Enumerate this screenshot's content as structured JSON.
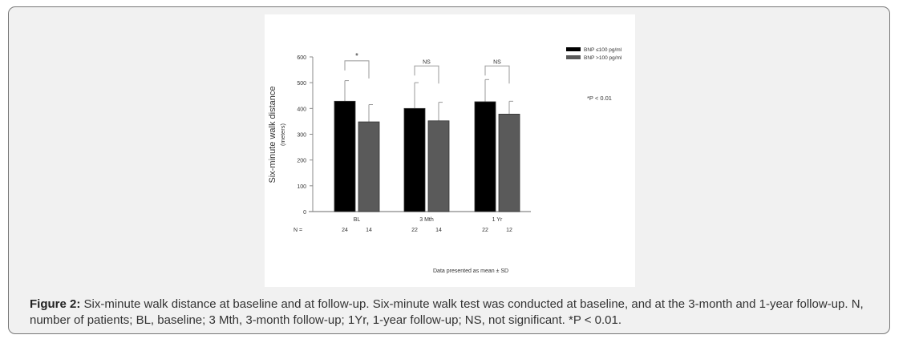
{
  "chart_data": {
    "type": "bar",
    "ylabel": "Six-minute walk distance",
    "ylabel_sub": "(meters)",
    "ylim": [
      0,
      600
    ],
    "yticks": [
      0,
      100,
      200,
      300,
      400,
      500,
      600
    ],
    "categories": [
      "BL",
      "3 Mth",
      "1 Yr"
    ],
    "series": [
      {
        "name": "BNP ≤100 pg/ml",
        "color": "#000000",
        "values": [
          428,
          400,
          426
        ],
        "error_upper": [
          508,
          500,
          512
        ]
      },
      {
        "name": "BNP >100 pg/ml",
        "color": "#5a5a5a",
        "values": [
          348,
          352,
          378
        ],
        "error_upper": [
          415,
          424,
          428
        ]
      }
    ],
    "significance": [
      "*",
      "NS",
      "NS"
    ],
    "n_label": "N =",
    "n_values": [
      [
        24,
        14
      ],
      [
        22,
        14
      ],
      [
        22,
        12
      ]
    ],
    "annotation": "*P < 0.01",
    "footnote": "Data presented as mean ± SD",
    "grid": false,
    "legend_position": "top-right"
  },
  "caption": {
    "label": "Figure 2:",
    "text": " Six-minute walk distance at baseline and at follow-up. Six-minute walk test was conducted at baseline, and at the 3-month and 1-year follow-up. N, number of patients; BL, baseline; 3 Mth, 3-month follow-up; 1Yr, 1-year follow-up; NS, not significant. *P < 0.01."
  }
}
